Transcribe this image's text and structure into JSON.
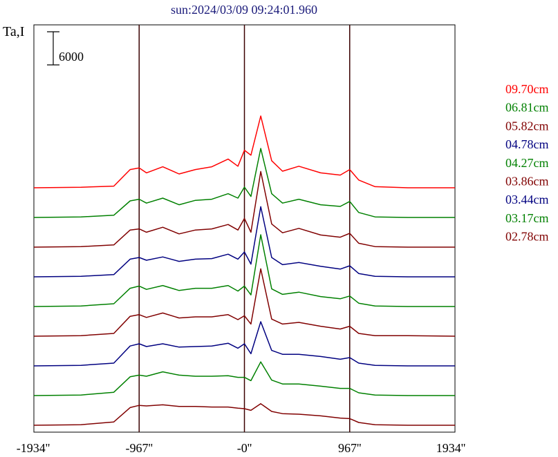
{
  "title": "sun:2024/03/09 09:24:01.960",
  "ylabel": "Ta,I",
  "scale_bar_label": "6000",
  "scale_bar_value": 6000,
  "colors": {
    "title": "#1a1a7a",
    "axis": "#000000",
    "red": "#ff0000",
    "green": "#008000",
    "maroon": "#800000",
    "navy": "#000080"
  },
  "chart_data": {
    "type": "line",
    "title": "sun:2024/03/09 09:24:01.960",
    "xlabel": "",
    "ylabel": "Ta,I",
    "xlim": [
      -1934,
      1934
    ],
    "x_ticks": [
      -1934,
      -967,
      0,
      967,
      1934
    ],
    "x_tick_labels": [
      "-1934''",
      "-967''",
      "-0''",
      "967''",
      "1934''"
    ],
    "vertical_markers": [
      -967,
      0,
      967
    ],
    "grid": false,
    "legend_placement": "right",
    "x": [
      -1934,
      -1500,
      -1200,
      -1050,
      -967,
      -900,
      -750,
      -600,
      -450,
      -300,
      -150,
      -60,
      0,
      60,
      150,
      250,
      350,
      500,
      700,
      880,
      967,
      1050,
      1200,
      1500,
      1934
    ],
    "series": [
      {
        "name": "09.70cm",
        "color": "#ff0000",
        "values": [
          0,
          100,
          300,
          3300,
          3600,
          2700,
          3800,
          2500,
          3300,
          3800,
          5200,
          3900,
          6800,
          5900,
          13000,
          4900,
          3000,
          3900,
          2700,
          2300,
          3300,
          1400,
          200,
          0,
          0
        ]
      },
      {
        "name": "06.81cm",
        "color": "#008000",
        "values": [
          0,
          100,
          400,
          3000,
          3300,
          2600,
          3500,
          2300,
          3100,
          3300,
          4300,
          3500,
          5500,
          3800,
          12500,
          4300,
          2600,
          3300,
          2300,
          2000,
          2900,
          900,
          100,
          0,
          0
        ]
      },
      {
        "name": "05.82cm",
        "color": "#800000",
        "values": [
          0,
          100,
          400,
          3100,
          3300,
          2700,
          3600,
          2400,
          3100,
          3300,
          4100,
          3100,
          5200,
          2700,
          13700,
          4200,
          2600,
          3400,
          2200,
          1800,
          2500,
          700,
          100,
          0,
          0
        ]
      },
      {
        "name": "04.78cm",
        "color": "#000080",
        "values": [
          0,
          100,
          400,
          3200,
          3500,
          3000,
          3600,
          2800,
          3200,
          3300,
          4100,
          3200,
          4500,
          2300,
          12700,
          3500,
          2200,
          2600,
          1900,
          1400,
          2000,
          600,
          100,
          0,
          0
        ]
      },
      {
        "name": "04.27cm",
        "color": "#008000",
        "values": [
          0,
          100,
          500,
          3300,
          3700,
          3100,
          3800,
          2900,
          3300,
          3300,
          3800,
          2800,
          3700,
          2100,
          13000,
          3200,
          2200,
          2600,
          1800,
          1400,
          1900,
          600,
          100,
          0,
          0
        ]
      },
      {
        "name": "03.86cm",
        "color": "#800000",
        "values": [
          0,
          100,
          500,
          3600,
          3900,
          3400,
          4200,
          3300,
          3500,
          3500,
          3900,
          3000,
          3700,
          2200,
          12200,
          3100,
          2200,
          2500,
          1800,
          1300,
          1800,
          500,
          100,
          100,
          0
        ]
      },
      {
        "name": "03.44cm",
        "color": "#000080",
        "values": [
          0,
          100,
          500,
          3600,
          4000,
          3500,
          4000,
          3400,
          3500,
          3600,
          4100,
          3200,
          4000,
          2200,
          8000,
          2800,
          2100,
          2100,
          1700,
          1200,
          1500,
          500,
          100,
          0,
          0
        ]
      },
      {
        "name": "03.17cm",
        "color": "#008000",
        "values": [
          0,
          100,
          600,
          3400,
          3700,
          3500,
          4300,
          3700,
          3500,
          3500,
          3600,
          3300,
          3300,
          2700,
          6100,
          2800,
          2100,
          2100,
          1700,
          1300,
          1300,
          500,
          100,
          0,
          0
        ]
      },
      {
        "name": "02.78cm",
        "color": "#800000",
        "values": [
          0,
          100,
          600,
          3200,
          3600,
          3500,
          3700,
          3400,
          3400,
          3300,
          3300,
          3100,
          3000,
          2700,
          3900,
          2500,
          2100,
          2000,
          1700,
          1300,
          1200,
          500,
          100,
          0,
          0
        ]
      }
    ]
  }
}
